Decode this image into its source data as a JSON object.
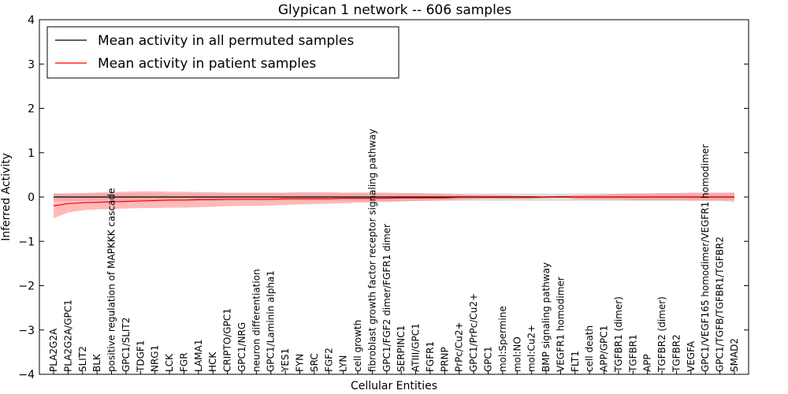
{
  "chart_data": {
    "type": "line",
    "title": "Glypican 1 network -- 606 samples",
    "xlabel": "Cellular Entities",
    "ylabel": "Inferred Activity",
    "ylim": [
      -4,
      4
    ],
    "yticks": [
      "−4",
      "−3",
      "−2",
      "−1",
      "0",
      "1",
      "2",
      "3",
      "4"
    ],
    "grid": false,
    "legend_position": "top-left",
    "categories": [
      "PLA2G2A",
      "PLA2G2A/GPC1",
      "SLIT2",
      "BLK",
      "positive regulation of MAPKKK cascade",
      "GPC1/SLIT2",
      "TDGF1",
      "NRG1",
      "LCK",
      "FGR",
      "LAMA1",
      "HCK",
      "CRIPTO/GPC1",
      "GPC1/NRG",
      "neuron differentiation",
      "GPC1/Laminin alpha1",
      "YES1",
      "FYN",
      "SRC",
      "FGF2",
      "LYN",
      "cell growth",
      "fibroblast growth factor receptor signaling pathway",
      "GPC1/FGF2 dimer/FGFR1 dimer",
      "SERPINC1",
      "ATIII/GPC1",
      "FGFR1",
      "PRNP",
      "PrPc/Cu2+",
      "GPC1/PrPc/Cu2+",
      "GPC1",
      "mol:Spermine",
      "mol:NO",
      "mol:Cu2+",
      "BMP signaling pathway",
      "VEGFR1 homodimer",
      "FLT1",
      "cell death",
      "APP/GPC1",
      "TGFBR1 (dimer)",
      "TGFBR1",
      "APP",
      "TGFBR2 (dimer)",
      "TGFBR2",
      "VEGFA",
      "GPC1/VEGF165 homodimer/VEGFR1 homodimer",
      "GPC1/TGFB/TGFBR1/TGFBR2",
      "SMAD2"
    ],
    "series": [
      {
        "name": "Mean activity in all permuted samples",
        "color": "#000000",
        "band_color": "#bbbbbb",
        "values": [
          0,
          0,
          0,
          0,
          0,
          0,
          0,
          0,
          0,
          0,
          0,
          0,
          0,
          0,
          0,
          0,
          0,
          0,
          0,
          0,
          0,
          0,
          0,
          0,
          0,
          0,
          0,
          0,
          0,
          0,
          0,
          0,
          0,
          0,
          0,
          0,
          0,
          0,
          0,
          0,
          0,
          0,
          0,
          0,
          0,
          0,
          0,
          0
        ],
        "lower": [
          -0.09,
          -0.09,
          -0.09,
          -0.09,
          -0.09,
          -0.09,
          -0.09,
          -0.09,
          -0.09,
          -0.09,
          -0.09,
          -0.09,
          -0.09,
          -0.09,
          -0.09,
          -0.09,
          -0.09,
          -0.09,
          -0.09,
          -0.09,
          -0.09,
          -0.09,
          -0.09,
          -0.09,
          -0.09,
          -0.09,
          -0.09,
          -0.09,
          -0.09,
          -0.09,
          -0.09,
          -0.09,
          -0.09,
          -0.09,
          -0.09,
          -0.09,
          -0.09,
          -0.09,
          -0.09,
          -0.09,
          -0.09,
          -0.09,
          -0.09,
          -0.09,
          -0.09,
          -0.09,
          -0.09,
          -0.12
        ],
        "upper": [
          0.08,
          0.08,
          0.08,
          0.08,
          0.08,
          0.08,
          0.08,
          0.08,
          0.08,
          0.08,
          0.08,
          0.08,
          0.08,
          0.08,
          0.08,
          0.08,
          0.08,
          0.08,
          0.08,
          0.08,
          0.08,
          0.08,
          0.08,
          0.08,
          0.08,
          0.08,
          0.08,
          0.08,
          0.08,
          0.08,
          0.08,
          0.08,
          0.08,
          0.08,
          0.08,
          0.08,
          0.08,
          0.08,
          0.08,
          0.08,
          0.08,
          0.08,
          0.08,
          0.08,
          0.08,
          0.08,
          0.08,
          0.1
        ]
      },
      {
        "name": "Mean activity in patient samples",
        "color": "#ff0000",
        "band_color": "#ff8080",
        "values": [
          -0.2,
          -0.15,
          -0.13,
          -0.12,
          -0.11,
          -0.1,
          -0.09,
          -0.08,
          -0.07,
          -0.07,
          -0.06,
          -0.06,
          -0.05,
          -0.05,
          -0.05,
          -0.05,
          -0.04,
          -0.04,
          -0.04,
          -0.04,
          -0.03,
          -0.03,
          -0.03,
          -0.03,
          -0.02,
          -0.02,
          -0.02,
          -0.02,
          -0.01,
          -0.01,
          -0.01,
          -0.01,
          -0.01,
          -0.01,
          0,
          0.01,
          0,
          0,
          0,
          0,
          0,
          0,
          0,
          0,
          0,
          0,
          0,
          0
        ],
        "lower": [
          -0.48,
          -0.35,
          -0.3,
          -0.28,
          -0.27,
          -0.26,
          -0.25,
          -0.25,
          -0.24,
          -0.24,
          -0.23,
          -0.22,
          -0.21,
          -0.2,
          -0.2,
          -0.19,
          -0.18,
          -0.17,
          -0.16,
          -0.15,
          -0.14,
          -0.13,
          -0.12,
          -0.11,
          -0.1,
          -0.09,
          -0.08,
          -0.07,
          -0.06,
          -0.05,
          -0.04,
          -0.04,
          -0.05,
          -0.04,
          -0.03,
          0.0,
          -0.05,
          -0.06,
          -0.06,
          -0.06,
          -0.07,
          -0.07,
          -0.07,
          -0.07,
          -0.08,
          -0.08,
          -0.08,
          -0.08
        ],
        "upper": [
          0.08,
          0.08,
          0.09,
          0.1,
          0.11,
          0.12,
          0.13,
          0.13,
          0.12,
          0.12,
          0.11,
          0.11,
          0.1,
          0.1,
          0.1,
          0.1,
          0.1,
          0.11,
          0.11,
          0.11,
          0.1,
          0.1,
          0.1,
          0.1,
          0.09,
          0.09,
          0.08,
          0.07,
          0.06,
          0.05,
          0.05,
          0.04,
          0.03,
          0.02,
          0.02,
          0.02,
          0.04,
          0.05,
          0.06,
          0.07,
          0.08,
          0.08,
          0.09,
          0.09,
          0.1,
          0.1,
          0.1,
          0.1
        ]
      }
    ]
  }
}
